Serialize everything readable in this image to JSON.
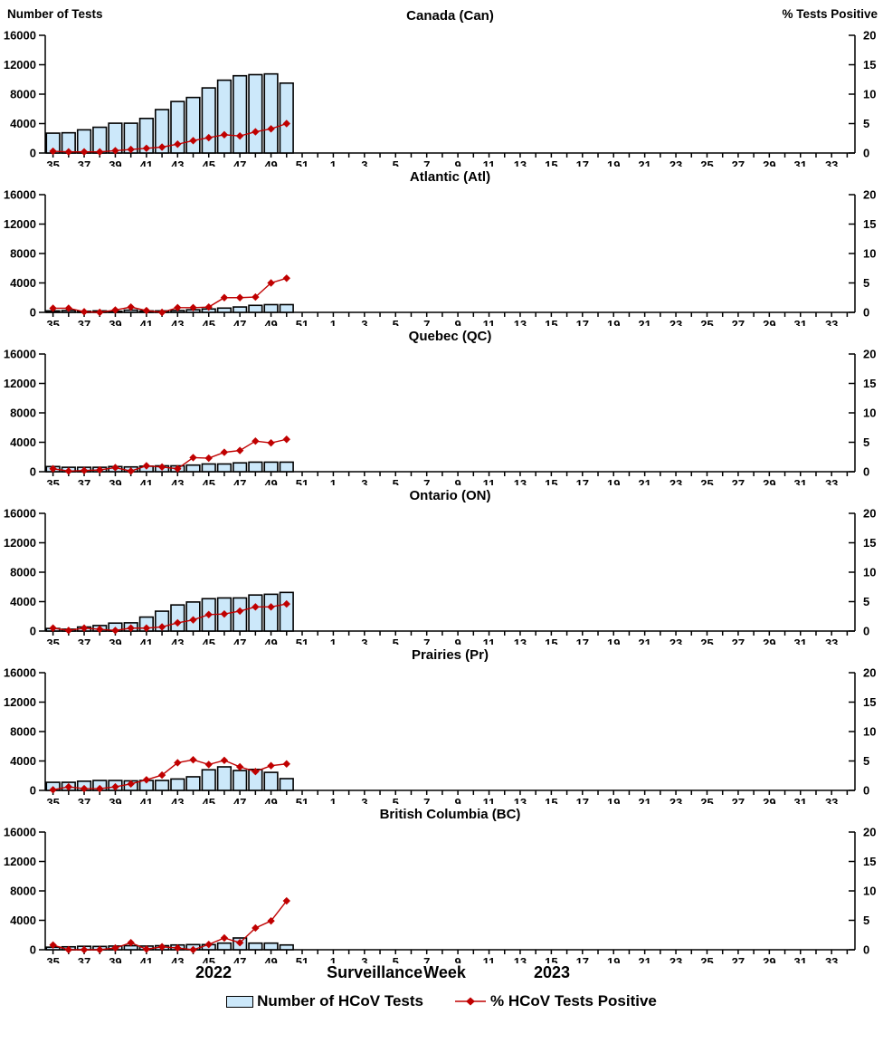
{
  "page": {
    "left_axis_title": "Number of Tests",
    "right_axis_title": "% Tests Positive",
    "x_axis_title": "Surveillance Week",
    "year_left": "2022",
    "year_right": "2023"
  },
  "legend": {
    "bar_label": "Number of HCoV Tests",
    "line_label": "% HCoV Tests Positive"
  },
  "colors": {
    "bar_fill": "#CCE8FA",
    "bar_stroke": "#000000",
    "line": "#C00000",
    "axis": "#000000",
    "text": "#000000"
  },
  "axes": {
    "weeks_2022": [
      35,
      36,
      37,
      38,
      39,
      40,
      41,
      42,
      43,
      44,
      45,
      46,
      47,
      48,
      49,
      50,
      51,
      52
    ],
    "weeks_2023": [
      1,
      2,
      3,
      4,
      5,
      6,
      7,
      8,
      9,
      10,
      11,
      12,
      13,
      14,
      15,
      16,
      17,
      18,
      19,
      20,
      21,
      22,
      23,
      24,
      25,
      26,
      27,
      28,
      29,
      30,
      31,
      32,
      33,
      34
    ],
    "left_ticks": [
      0,
      4000,
      8000,
      12000,
      16000
    ],
    "left_max": 16000,
    "right_ticks": [
      0,
      5,
      10,
      15,
      20
    ],
    "right_max": 20,
    "label_every": 2
  },
  "chart_data": [
    {
      "type": "combo",
      "title": "Canada (Can)",
      "x_weeks": [
        35,
        36,
        37,
        38,
        39,
        40,
        41,
        42,
        43,
        44,
        45,
        46,
        47,
        48,
        49,
        50
      ],
      "left_ylim": [
        0,
        16000
      ],
      "right_ylim": [
        0,
        20
      ],
      "series": [
        {
          "name": "Number of HCoV Tests",
          "type": "bar",
          "axis": "left",
          "values": [
            2700,
            2750,
            3150,
            3500,
            4050,
            4050,
            4700,
            5900,
            7000,
            7550,
            8850,
            9900,
            10500,
            10650,
            10750,
            9500
          ]
        },
        {
          "name": "% HCoV Tests Positive",
          "type": "line",
          "axis": "right",
          "values": [
            0.3,
            0.2,
            0.2,
            0.2,
            0.4,
            0.6,
            0.8,
            1.0,
            1.5,
            2.1,
            2.6,
            3.1,
            2.9,
            3.6,
            4.1,
            5.0
          ]
        }
      ]
    },
    {
      "type": "combo",
      "title": "Atlantic (Atl)",
      "x_weeks": [
        35,
        36,
        37,
        38,
        39,
        40,
        41,
        42,
        43,
        44,
        45,
        46,
        47,
        48,
        49,
        50
      ],
      "left_ylim": [
        0,
        16000
      ],
      "right_ylim": [
        0,
        20
      ],
      "series": [
        {
          "name": "Number of HCoV Tests",
          "type": "bar",
          "axis": "left",
          "values": [
            200,
            250,
            150,
            200,
            150,
            300,
            200,
            200,
            250,
            350,
            460,
            580,
            730,
            950,
            1050,
            1050
          ]
        },
        {
          "name": "% HCoV Tests Positive",
          "type": "line",
          "axis": "right",
          "values": [
            0.7,
            0.7,
            0.1,
            0.0,
            0.4,
            0.9,
            0.3,
            0.0,
            0.8,
            0.8,
            0.9,
            2.5,
            2.5,
            2.6,
            5.0,
            5.8
          ]
        }
      ]
    },
    {
      "type": "combo",
      "title": "Quebec (QC)",
      "x_weeks": [
        35,
        36,
        37,
        38,
        39,
        40,
        41,
        42,
        43,
        44,
        45,
        46,
        47,
        48,
        49,
        50
      ],
      "left_ylim": [
        0,
        16000
      ],
      "right_ylim": [
        0,
        20
      ],
      "series": [
        {
          "name": "Number of HCoV Tests",
          "type": "bar",
          "axis": "left",
          "values": [
            700,
            600,
            600,
            600,
            700,
            650,
            750,
            800,
            800,
            900,
            1050,
            1050,
            1200,
            1300,
            1300,
            1300
          ]
        },
        {
          "name": "% HCoV Tests Positive",
          "type": "line",
          "axis": "right",
          "values": [
            0.5,
            0.1,
            0.2,
            0.3,
            0.7,
            0.1,
            1.0,
            0.8,
            0.5,
            2.4,
            2.3,
            3.3,
            3.6,
            5.2,
            4.9,
            5.5
          ]
        }
      ]
    },
    {
      "type": "combo",
      "title": "Ontario (ON)",
      "x_weeks": [
        35,
        36,
        37,
        38,
        39,
        40,
        41,
        42,
        43,
        44,
        45,
        46,
        47,
        48,
        49,
        50
      ],
      "left_ylim": [
        0,
        16000
      ],
      "right_ylim": [
        0,
        20
      ],
      "series": [
        {
          "name": "Number of HCoV Tests",
          "type": "bar",
          "axis": "left",
          "values": [
            350,
            250,
            550,
            750,
            1080,
            1120,
            1900,
            2700,
            3550,
            3950,
            4400,
            4500,
            4500,
            4900,
            5000,
            5250
          ]
        },
        {
          "name": "% HCoV Tests Positive",
          "type": "line",
          "axis": "right",
          "values": [
            0.5,
            0.1,
            0.5,
            0.3,
            0.1,
            0.5,
            0.5,
            0.7,
            1.4,
            1.9,
            2.8,
            2.9,
            3.4,
            4.1,
            4.1,
            4.6
          ]
        }
      ]
    },
    {
      "type": "combo",
      "title": "Prairies (Pr)",
      "x_weeks": [
        35,
        36,
        37,
        38,
        39,
        40,
        41,
        42,
        43,
        44,
        45,
        46,
        47,
        48,
        49,
        50
      ],
      "left_ylim": [
        0,
        16000
      ],
      "right_ylim": [
        0,
        20
      ],
      "series": [
        {
          "name": "Number of HCoV Tests",
          "type": "bar",
          "axis": "left",
          "values": [
            1100,
            1100,
            1250,
            1350,
            1350,
            1300,
            1350,
            1350,
            1550,
            1850,
            2800,
            3200,
            2700,
            2850,
            2450,
            1600
          ]
        },
        {
          "name": "% HCoV Tests Positive",
          "type": "line",
          "axis": "right",
          "values": [
            0.1,
            0.6,
            0.3,
            0.3,
            0.6,
            1.1,
            1.8,
            2.6,
            4.7,
            5.2,
            4.4,
            5.1,
            4.0,
            3.2,
            4.2,
            4.5
          ]
        }
      ]
    },
    {
      "type": "combo",
      "title": "British Columbia (BC)",
      "x_weeks": [
        35,
        36,
        37,
        38,
        39,
        40,
        41,
        42,
        43,
        44,
        45,
        46,
        47,
        48,
        49,
        50
      ],
      "left_ylim": [
        0,
        16000
      ],
      "right_ylim": [
        0,
        20
      ],
      "series": [
        {
          "name": "Number of HCoV Tests",
          "type": "bar",
          "axis": "left",
          "values": [
            350,
            400,
            470,
            450,
            500,
            550,
            500,
            550,
            650,
            700,
            700,
            900,
            1600,
            900,
            900,
            650
          ]
        },
        {
          "name": "% HCoV Tests Positive",
          "type": "line",
          "axis": "right",
          "values": [
            0.8,
            0.0,
            0.0,
            0.0,
            0.3,
            1.2,
            0.1,
            0.5,
            0.3,
            0.0,
            0.9,
            2.0,
            1.2,
            3.7,
            4.9,
            8.3
          ]
        }
      ]
    }
  ]
}
